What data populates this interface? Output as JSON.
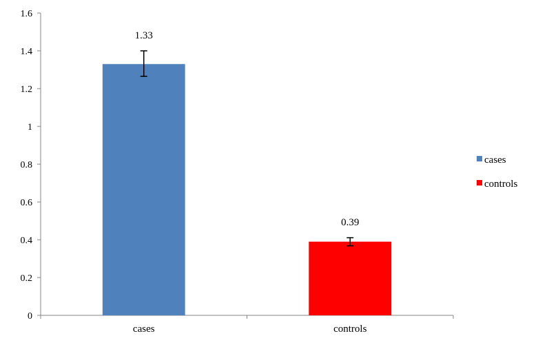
{
  "chart_data": {
    "type": "bar",
    "categories": [
      "cases",
      "controls"
    ],
    "values": [
      1.33,
      0.39
    ],
    "data_labels": [
      "1.33",
      "0.39"
    ],
    "error": [
      {
        "low": 1.265,
        "high": 1.4
      },
      {
        "low": 0.368,
        "high": 0.411
      }
    ],
    "bar_colors": [
      "#4f81bd",
      "#ff0000"
    ],
    "ylim": [
      0,
      1.6
    ],
    "y_ticks": [
      0,
      0.2,
      0.4,
      0.6,
      0.8,
      1,
      1.2,
      1.4,
      1.6
    ],
    "y_tick_labels": [
      "0",
      "0.2",
      "0.4",
      "0.6",
      "0.8",
      "1",
      "1.2",
      "1.4",
      "1.6"
    ],
    "legend": {
      "position": "right",
      "entries": [
        {
          "label": "cases",
          "color": "#4f81bd"
        },
        {
          "label": "controls",
          "color": "#ff0000"
        }
      ]
    },
    "grid": false,
    "title": "",
    "xlabel": "",
    "ylabel": ""
  }
}
